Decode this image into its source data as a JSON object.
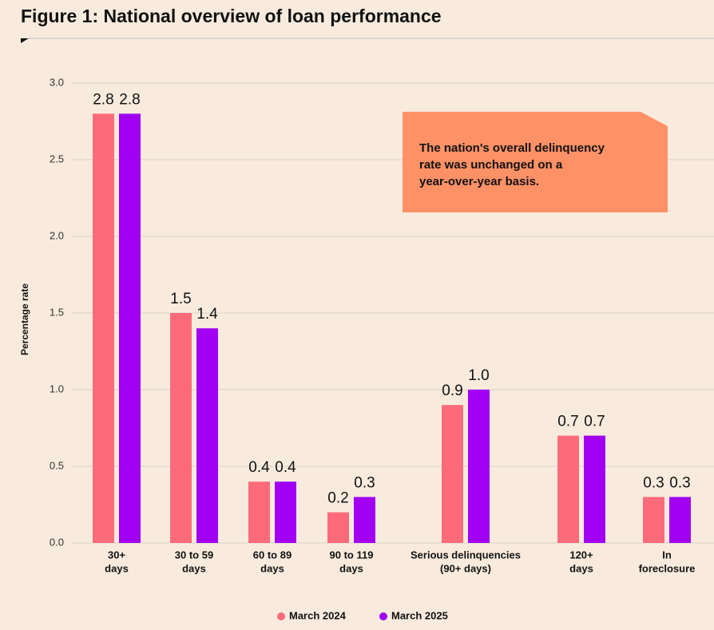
{
  "chart_data": {
    "type": "bar",
    "title": "Figure 1: National overview of loan performance",
    "y_label": "Percentage rate",
    "annotation": [
      "The nation's overall delinquency",
      "rate was unchanged on a",
      "year-over-year basis."
    ],
    "categories": [
      [
        "30+",
        "days"
      ],
      [
        "30 to 59",
        "days"
      ],
      [
        "60 to 89",
        "days"
      ],
      [
        "90 to 119",
        "days"
      ],
      [
        "Serious delinquencies",
        "(90+ days)"
      ],
      [
        "120+",
        "days"
      ],
      [
        "In",
        "foreclosure"
      ]
    ],
    "series": [
      {
        "name": "March 2024",
        "color": "#fd6b7b",
        "values": [
          2.8,
          1.5,
          0.4,
          0.2,
          0.9,
          0.7,
          0.3
        ]
      },
      {
        "name": "March 2025",
        "color": "#a100f2",
        "values": [
          2.8,
          1.4,
          0.4,
          0.3,
          1,
          0.7,
          0.3
        ],
        "value_labels": [
          "2.8",
          "1.4",
          "0.4",
          "0.3",
          "1.0",
          "0.7",
          "0.3"
        ]
      }
    ],
    "ylim": [
      0,
      3
    ],
    "yticks": [
      {
        "value": 0,
        "label": "0.0"
      },
      0.5,
      {
        "value": 1,
        "label": "1.0"
      },
      1.5,
      {
        "value": 2,
        "label": "2.0"
      },
      2.5,
      {
        "value": 3,
        "label": "3.0"
      }
    ],
    "grid": true
  }
}
